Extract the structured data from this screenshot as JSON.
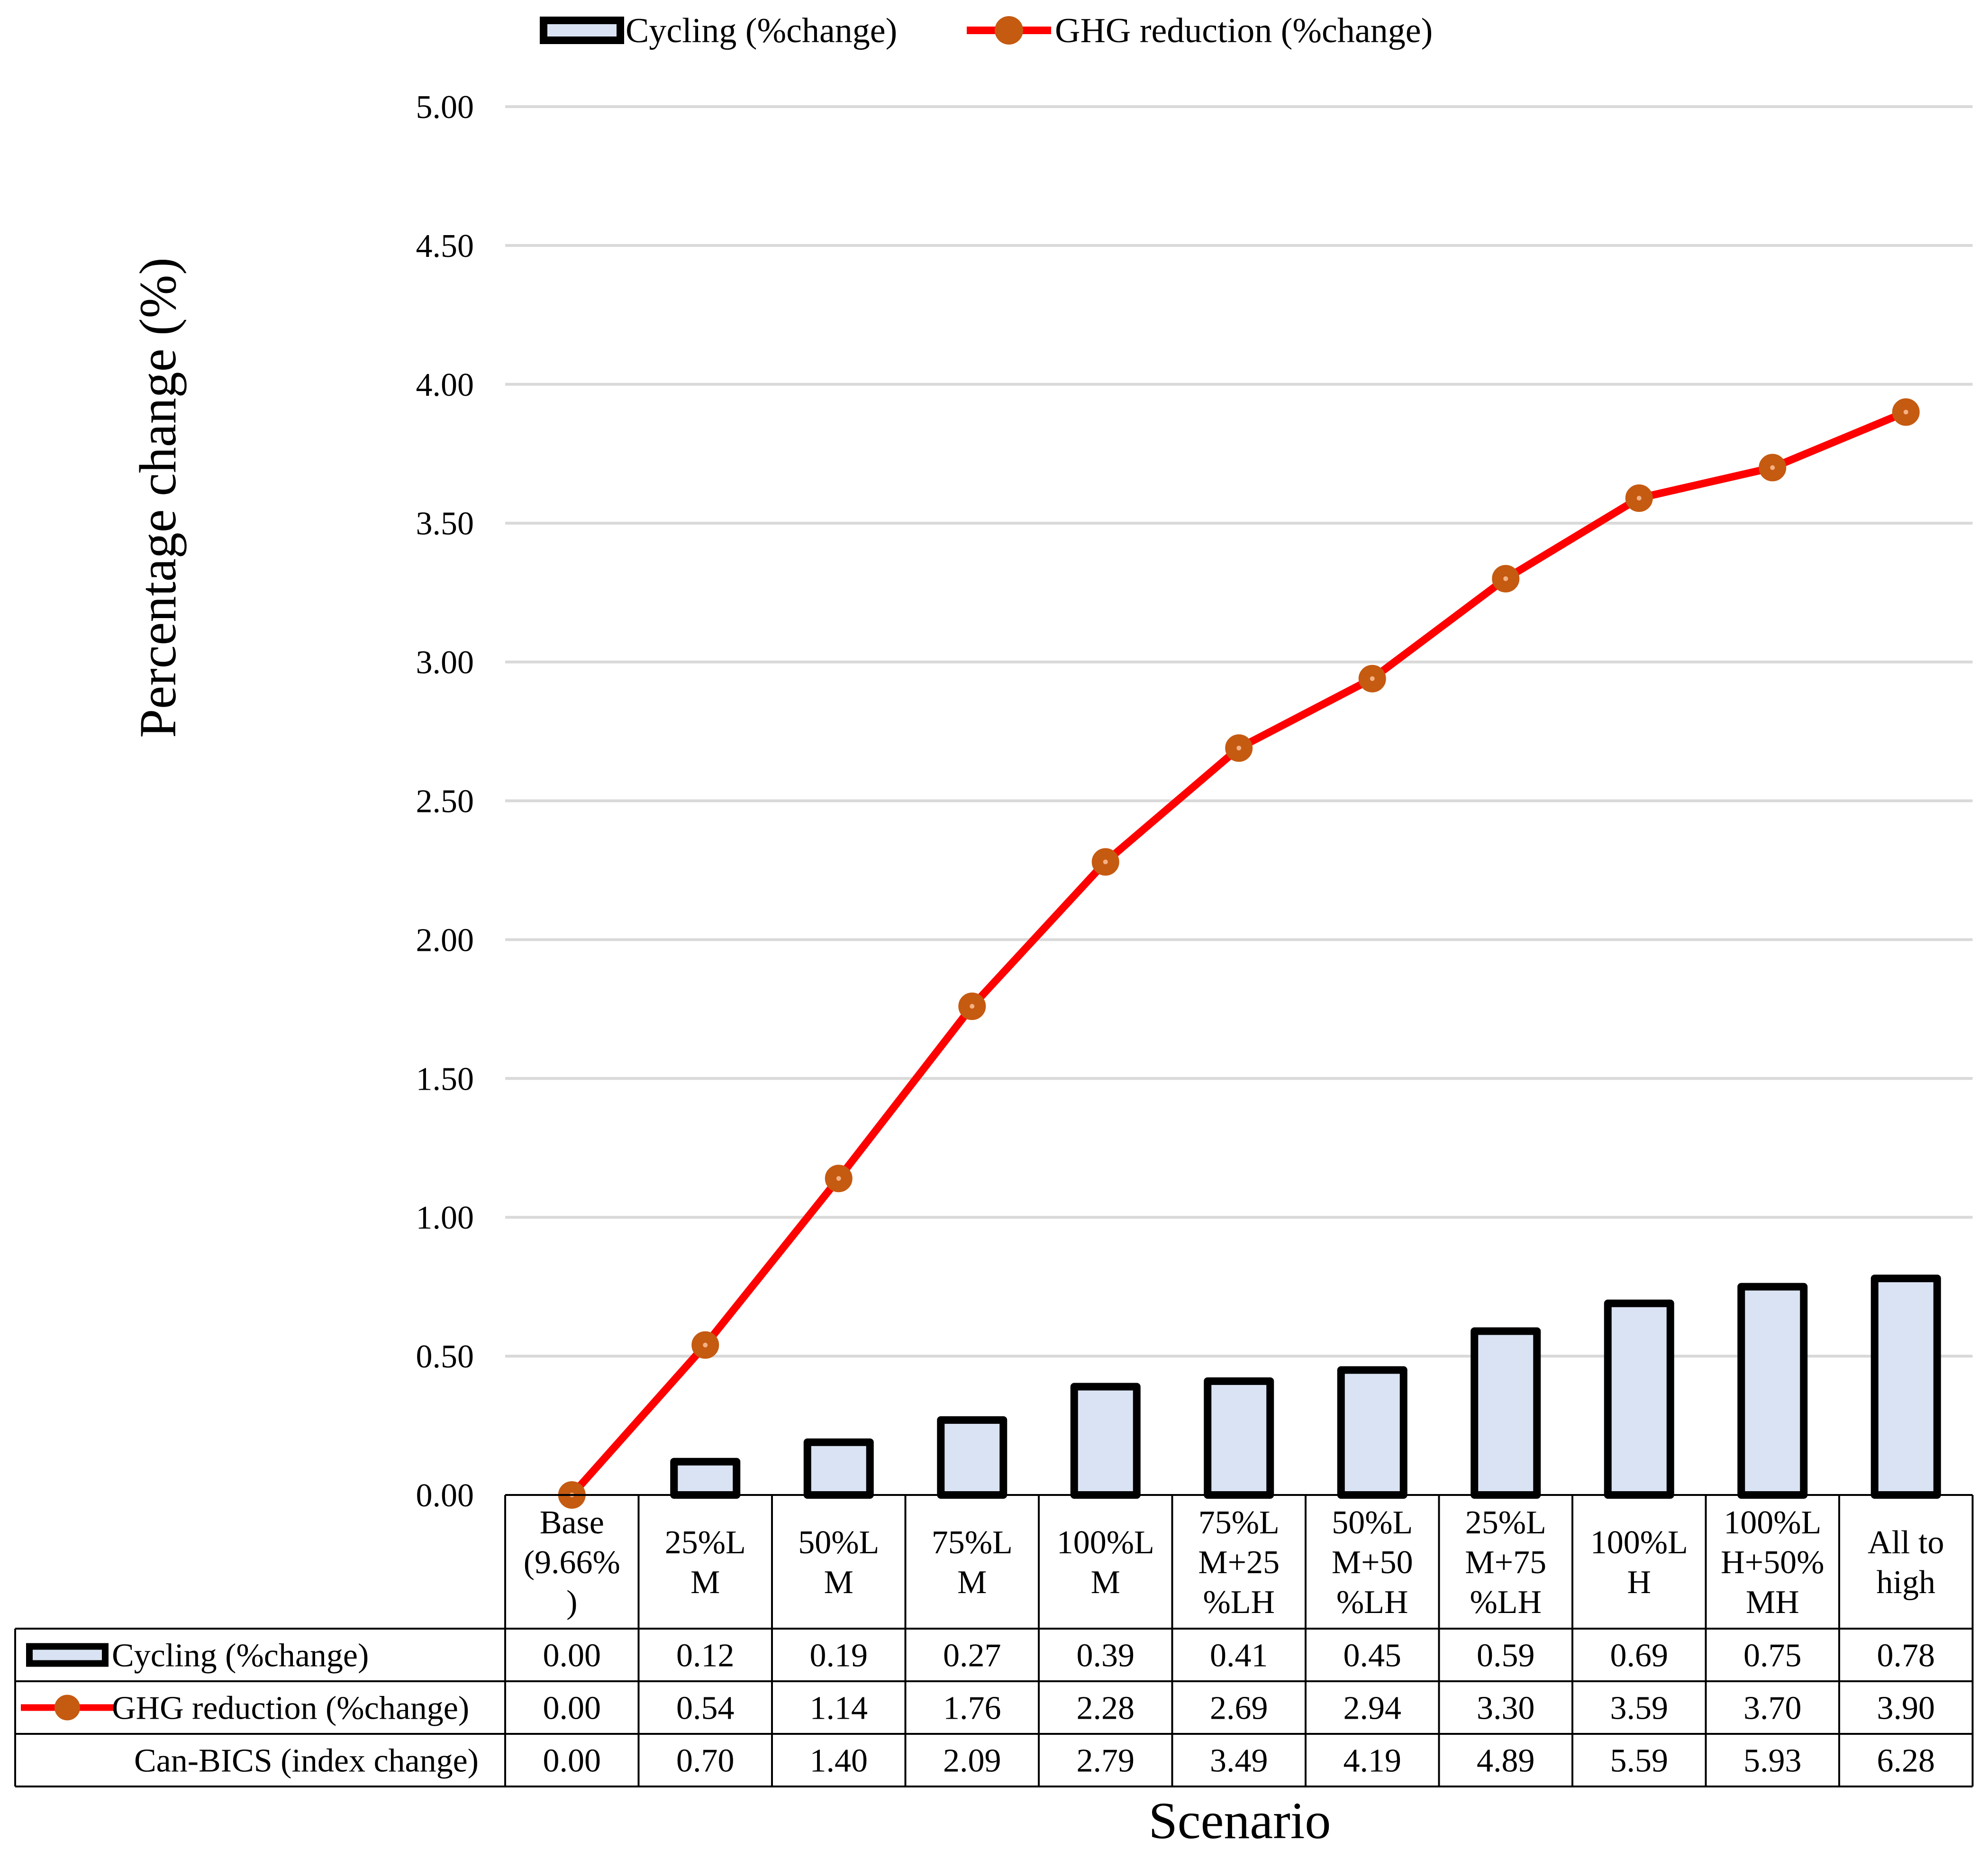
{
  "chart_data": {
    "type": "bar",
    "ylabel": "Percentage change (%)",
    "xlabel": "Scenario",
    "ylim": [
      0,
      5
    ],
    "yticks": [
      "0.00",
      "0.50",
      "1.00",
      "1.50",
      "2.00",
      "2.50",
      "3.00",
      "3.50",
      "4.00",
      "4.50",
      "5.00"
    ],
    "grid": true,
    "legend_position": "top",
    "categories": [
      [
        "Base",
        "(9.66%",
        ")"
      ],
      [
        "25%L",
        "M"
      ],
      [
        "50%L",
        "M"
      ],
      [
        "75%L",
        "M"
      ],
      [
        "100%L",
        "M"
      ],
      [
        "75%L",
        "M+25",
        "%LH"
      ],
      [
        "50%L",
        "M+50",
        "%LH"
      ],
      [
        "25%L",
        "M+75",
        "%LH"
      ],
      [
        "100%L",
        "H"
      ],
      [
        "100%L",
        "H+50%",
        "MH"
      ],
      [
        "All to",
        "high"
      ]
    ],
    "series": [
      {
        "name": "Cycling (%change)",
        "type": "bar",
        "color": "#dae3f3",
        "edge_color": "#000000",
        "values": [
          0.0,
          0.12,
          0.19,
          0.27,
          0.39,
          0.41,
          0.45,
          0.59,
          0.69,
          0.75,
          0.78
        ],
        "labels": [
          "0.00",
          "0.12",
          "0.19",
          "0.27",
          "0.39",
          "0.41",
          "0.45",
          "0.59",
          "0.69",
          "0.75",
          "0.78"
        ]
      },
      {
        "name": "GHG reduction (%change)",
        "type": "line",
        "color": "#ff0000",
        "marker_color": "#c55a11",
        "values": [
          0.0,
          0.54,
          1.14,
          1.76,
          2.28,
          2.69,
          2.94,
          3.3,
          3.59,
          3.7,
          3.9
        ],
        "labels": [
          "0.00",
          "0.54",
          "1.14",
          "1.76",
          "2.28",
          "2.69",
          "2.94",
          "3.30",
          "3.59",
          "3.70",
          "3.90"
        ]
      }
    ],
    "table_rows": [
      {
        "name": "Can-BICS (index change)",
        "values": [
          "0.00",
          "0.70",
          "1.40",
          "2.09",
          "2.79",
          "3.49",
          "4.19",
          "4.89",
          "5.59",
          "5.93",
          "6.28"
        ]
      }
    ]
  }
}
